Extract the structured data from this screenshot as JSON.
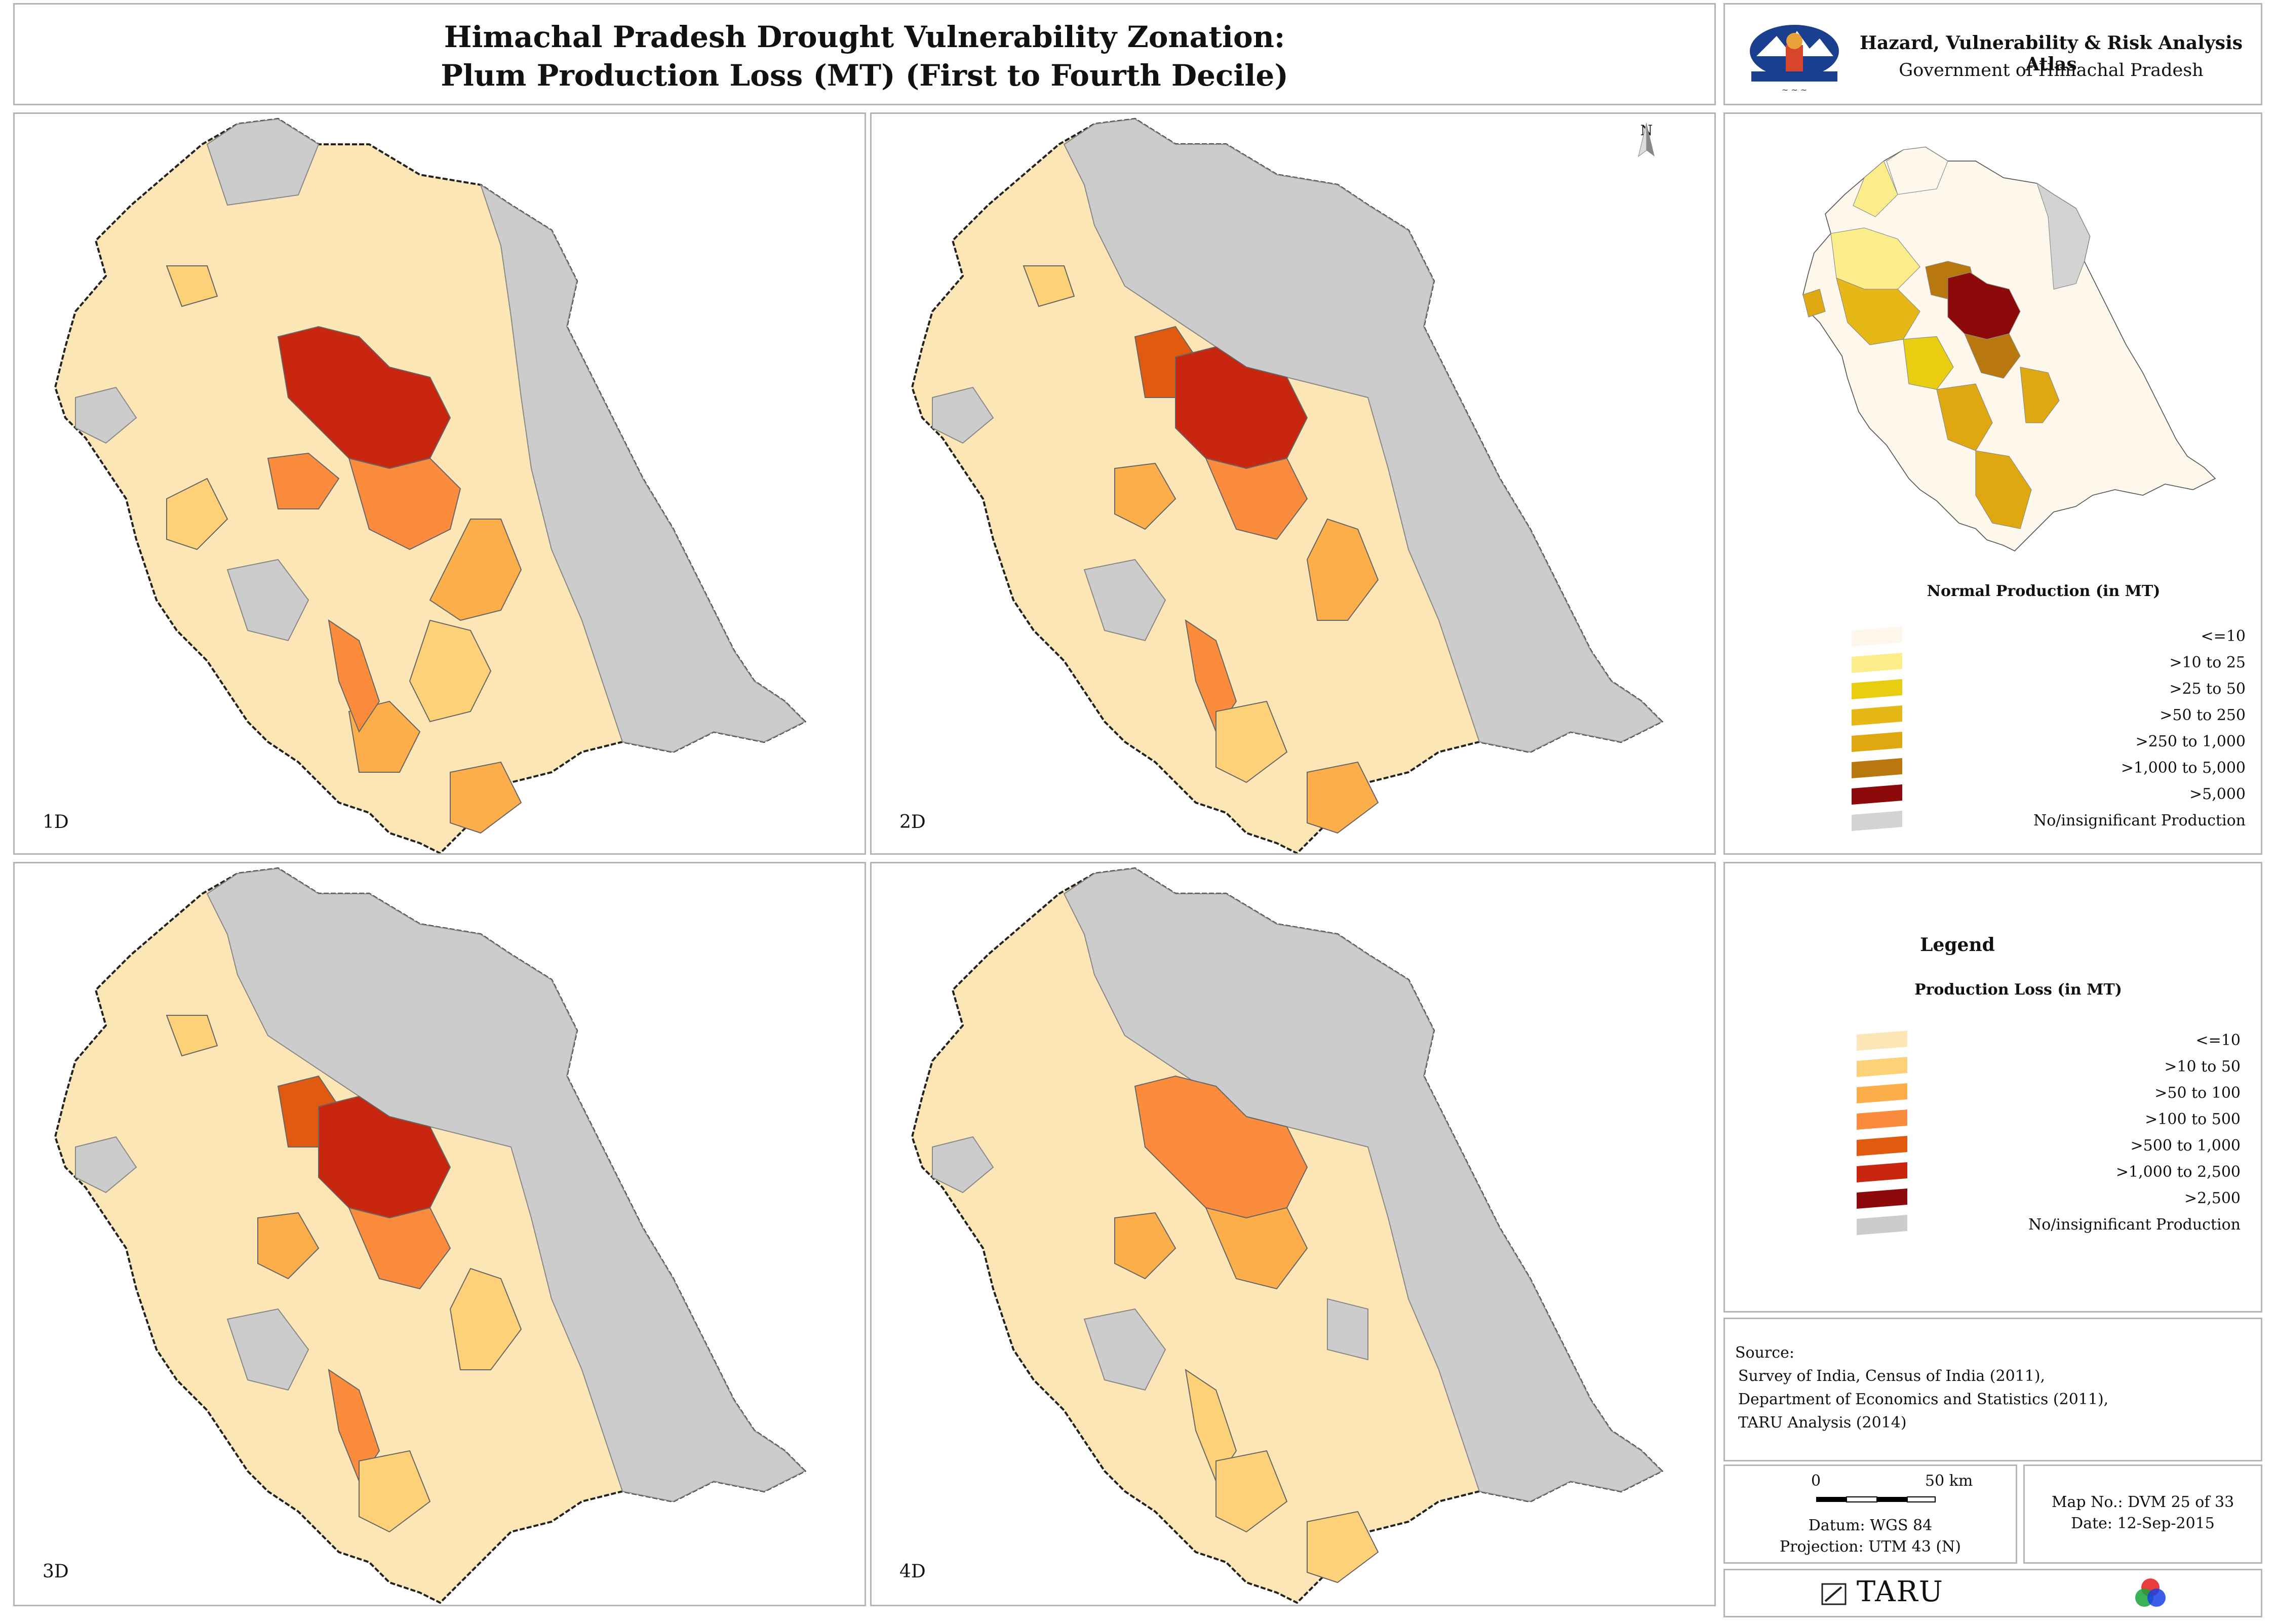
{
  "title": {
    "line1": "Himachal Pradesh Drought Vulnerability Zonation:",
    "line2": "Plum Production Loss (MT) (First to Fourth Decile)"
  },
  "atlas": {
    "title": "Hazard, Vulnerability & Risk Analysis Atlas",
    "subtitle": "Government of Himachal Pradesh",
    "emblem_icon": "himachal-emblem-icon"
  },
  "maps": [
    {
      "label": "1D"
    },
    {
      "label": "2D"
    },
    {
      "label": "3D"
    },
    {
      "label": "4D"
    }
  ],
  "north_arrow": {
    "label": "N"
  },
  "normal_production_legend": {
    "title": "Normal Production (in MT)",
    "items": [
      {
        "label": "<=10",
        "color": "#fdf7ec"
      },
      {
        "label": ">10 to 25",
        "color": "#fbee8a"
      },
      {
        "label": ">25 to 50",
        "color": "#e9cd10"
      },
      {
        "label": ">50 to 250",
        "color": "#e6b817"
      },
      {
        "label": ">250 to 1,000",
        "color": "#dfa811"
      },
      {
        "label": ">1,000 to 5,000",
        "color": "#b9780d"
      },
      {
        "label": ">5,000",
        "color": "#8c0a0a"
      },
      {
        "label": "No/insignificant Production",
        "color": "#d3d3d3"
      }
    ]
  },
  "loss_legend": {
    "heading": "Legend",
    "title": "Production Loss (in MT)",
    "items": [
      {
        "label": "<=10",
        "color": "#fde6b6"
      },
      {
        "label": ">10 to 50",
        "color": "#fdd177"
      },
      {
        "label": ">50 to 100",
        "color": "#fcae4a"
      },
      {
        "label": ">100 to 500",
        "color": "#fb8b3d"
      },
      {
        "label": ">500 to 1,000",
        "color": "#e05a10"
      },
      {
        "label": ">1,000 to 2,500",
        "color": "#c8260f"
      },
      {
        "label": ">2,500",
        "color": "#8c0a0a"
      },
      {
        "label": "No/insignificant Production",
        "color": "#cccccc"
      }
    ]
  },
  "source": {
    "heading": "Source:",
    "lines": [
      "Survey of India, Census of India (2011),",
      "Department of Economics and Statistics (2011),",
      "TARU Analysis (2014)"
    ]
  },
  "scale": {
    "start": "0",
    "end": "50 km",
    "datum": "Datum: WGS 84",
    "projection": "Projection: UTM 43 (N)"
  },
  "map_info": {
    "map_no": "Map No.: DVM 25 of 33",
    "date": "Date: 12-Sep-2015"
  },
  "footer": {
    "taru_label": "TARU",
    "taru_icon": "taru-logo-icon",
    "rgb_icon": "rgb-circles-icon"
  }
}
